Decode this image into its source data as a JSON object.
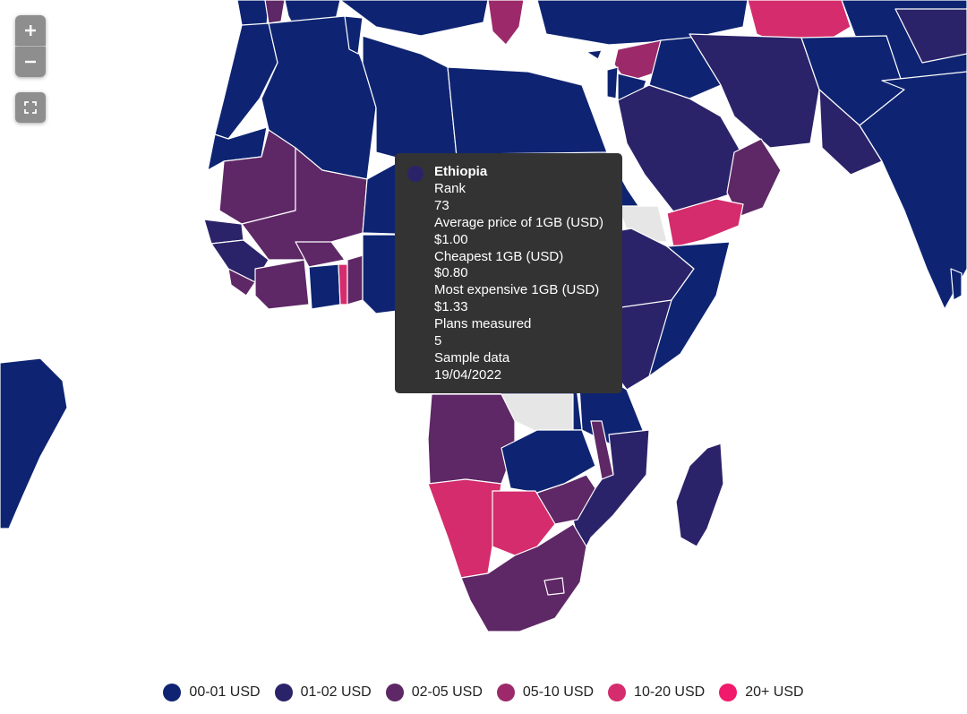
{
  "controls": {
    "zoom_in_label": "+",
    "zoom_out_label": "−",
    "fullscreen_label": "Fullscreen"
  },
  "colors": {
    "c0": "#0e2472",
    "c1": "#2b2369",
    "c2": "#5e2766",
    "c3": "#9c2a6a",
    "c4": "#d42c6c",
    "c5": "#f0196b",
    "nodata": "#e6e6e6",
    "border": "#ffffff"
  },
  "tooltip": {
    "country": "Ethiopia",
    "swatch_color": "#2b2369",
    "rows": [
      {
        "label": "Rank",
        "value": "73"
      },
      {
        "label": "Average price of 1GB (USD)",
        "value": "$1.00"
      },
      {
        "label": "Cheapest 1GB (USD)",
        "value": "$0.80"
      },
      {
        "label": "Most expensive 1GB (USD)",
        "value": "$1.33"
      },
      {
        "label": "Plans measured",
        "value": "5"
      },
      {
        "label": "Sample data",
        "value": "19/04/2022"
      }
    ]
  },
  "legend": [
    {
      "label": "00-01 USD",
      "color": "#0e2472"
    },
    {
      "label": "01-02 USD",
      "color": "#2b2369"
    },
    {
      "label": "02-05 USD",
      "color": "#5e2766"
    },
    {
      "label": "05-10 USD",
      "color": "#9c2a6a"
    },
    {
      "label": "10-20 USD",
      "color": "#d42c6c"
    },
    {
      "label": "20+ USD",
      "color": "#f0196b"
    }
  ]
}
